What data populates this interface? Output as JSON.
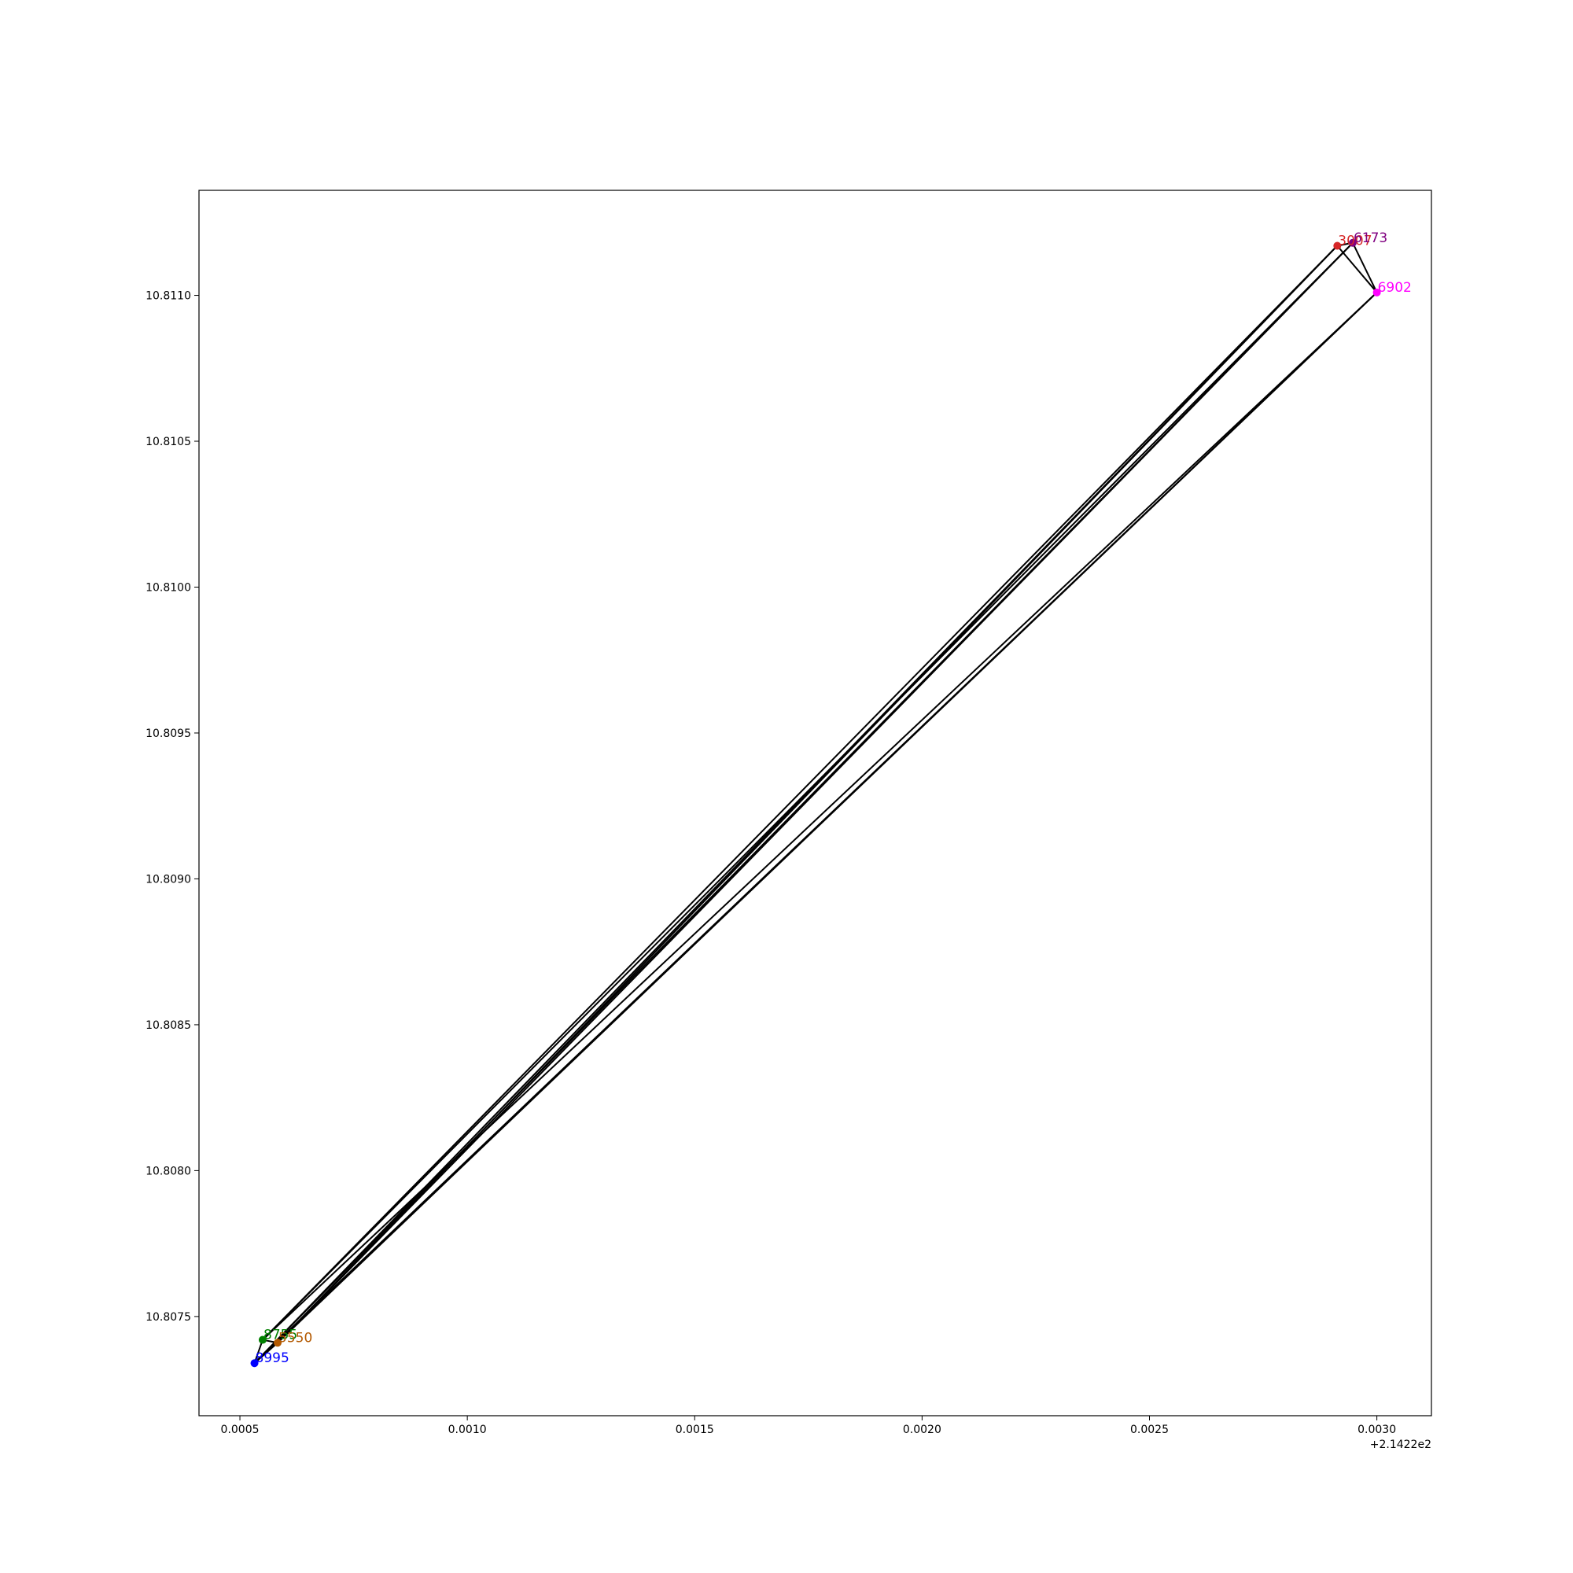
{
  "chart_data": {
    "type": "scatter",
    "title": "",
    "xlabel": "",
    "ylabel": "",
    "x_offset_label": "+2.1422e2",
    "xlim": [
      0.00041,
      0.00312
    ],
    "ylim": [
      10.80716,
      10.81136
    ],
    "x_ticks": [
      0.0005,
      0.001,
      0.0015,
      0.002,
      0.0025,
      0.003
    ],
    "x_tick_labels": [
      "0.0005",
      "0.0010",
      "0.0015",
      "0.0020",
      "0.0025",
      "0.0030"
    ],
    "y_ticks": [
      10.8075,
      10.808,
      10.8085,
      10.809,
      10.8095,
      10.81,
      10.8105,
      10.811
    ],
    "y_tick_labels": [
      "10.8075",
      "10.8080",
      "10.8085",
      "10.8090",
      "10.8095",
      "10.8100",
      "10.8105",
      "10.8110"
    ],
    "grid": false,
    "line_color": "#000000",
    "points": [
      {
        "id": "p1",
        "label": "3007",
        "x": 0.002913,
        "y": 10.81117,
        "color": "#d62728"
      },
      {
        "id": "p2",
        "label": "6173",
        "x": 0.002947,
        "y": 10.81118,
        "color": "#800080"
      },
      {
        "id": "p3",
        "label": "6902",
        "x": 0.003,
        "y": 10.81101,
        "color": "#ff00ff"
      },
      {
        "id": "p4",
        "label": "8755",
        "x": 0.00055,
        "y": 10.80742,
        "color": "#008000"
      },
      {
        "id": "p5",
        "label": "5550",
        "x": 0.000583,
        "y": 10.80741,
        "color": "#b35900"
      },
      {
        "id": "p6",
        "label": "8995",
        "x": 0.000532,
        "y": 10.80734,
        "color": "#0000ff"
      }
    ],
    "edges": [
      [
        "p1",
        "p4"
      ],
      [
        "p1",
        "p6"
      ],
      [
        "p1",
        "p5"
      ],
      [
        "p2",
        "p4"
      ],
      [
        "p2",
        "p5"
      ],
      [
        "p2",
        "p6"
      ],
      [
        "p3",
        "p4"
      ],
      [
        "p3",
        "p6"
      ],
      [
        "p3",
        "p5"
      ],
      [
        "p1",
        "p2"
      ],
      [
        "p2",
        "p3"
      ],
      [
        "p1",
        "p3"
      ],
      [
        "p4",
        "p6"
      ],
      [
        "p4",
        "p5"
      ],
      [
        "p5",
        "p6"
      ]
    ]
  }
}
